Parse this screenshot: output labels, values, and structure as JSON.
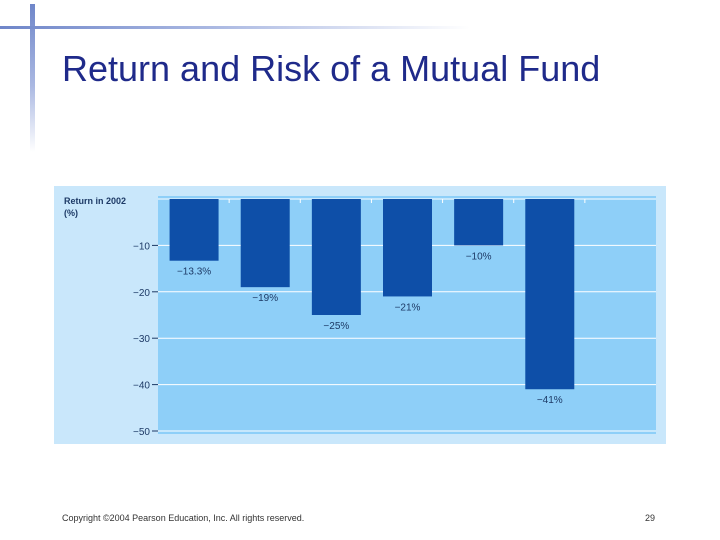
{
  "slide": {
    "title": "Return and Risk of a Mutual Fund",
    "copyright": "Copyright ©2004 Pearson Education, Inc. All rights reserved.",
    "page_number": "29"
  },
  "colors": {
    "title": "#1f2a8a",
    "panel_light": "#c9e7fb",
    "plot_bg": "#8ecff8",
    "bar": "#0e4fa8",
    "grid": "#ffffff",
    "text": "#1d3a66"
  },
  "chart_data": {
    "type": "bar",
    "title": "",
    "ylabel": "Return in 2002 (%)",
    "ylabel_lines": [
      "Return in 2002",
      "(%)"
    ],
    "xlabel": "",
    "categories": [
      "",
      "",
      "",
      "",
      "",
      ""
    ],
    "values": [
      -13.3,
      -19,
      -25,
      -21,
      -10,
      -41
    ],
    "data_labels": [
      "−13.3%",
      "−19%",
      "−25%",
      "−21%",
      "−10%",
      "−41%"
    ],
    "yticks": [
      -10,
      -20,
      -30,
      -40,
      -50
    ],
    "ytick_labels": [
      "−10",
      "−20",
      "−30",
      "−40",
      "−50"
    ],
    "ylim": [
      -50,
      0
    ],
    "grid": true
  }
}
